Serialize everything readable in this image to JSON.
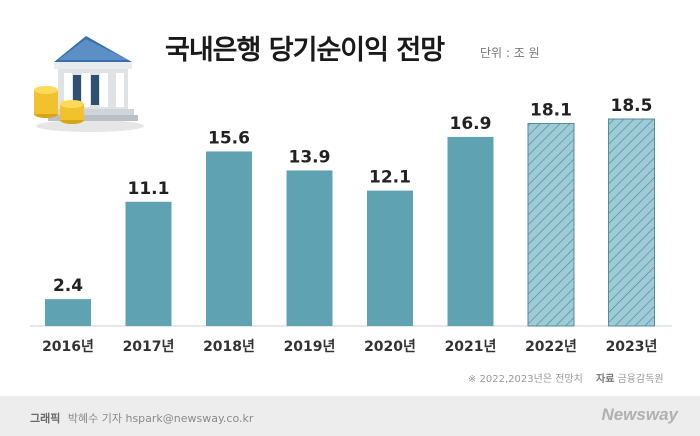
{
  "header": {
    "title": "국내은행 당기순이익 전망",
    "unit": "단위 : 조 원"
  },
  "note": {
    "projection": "※  2022,2023년은 전망치",
    "source_label": "자료",
    "source": "금융감독원"
  },
  "footer": {
    "graphic_label": "그래픽",
    "credit": "박혜수 기자 hspark@newsway.co.kr",
    "brand": "Newsway"
  },
  "colors": {
    "bar": "#5fa3b3",
    "bar_forecast_fill": "#9ecbd5",
    "bar_forecast_hatch": "#4f8e9d"
  },
  "chart_data": {
    "type": "bar",
    "categories": [
      "2016년",
      "2017년",
      "2018년",
      "2019년",
      "2020년",
      "2021년",
      "2022년",
      "2023년"
    ],
    "values": [
      2.4,
      11.1,
      15.6,
      13.9,
      12.1,
      16.9,
      18.1,
      18.5
    ],
    "value_labels": [
      "2.4",
      "11.1",
      "15.6",
      "13.9",
      "12.1",
      "16.9",
      "18.1",
      "18.5"
    ],
    "forecast": [
      false,
      false,
      false,
      false,
      false,
      false,
      true,
      true
    ],
    "title": "국내은행 당기순이익 전망",
    "ylabel": "",
    "xlabel": "",
    "ylim": [
      0,
      18.5
    ],
    "grid": false,
    "legend": "none"
  }
}
